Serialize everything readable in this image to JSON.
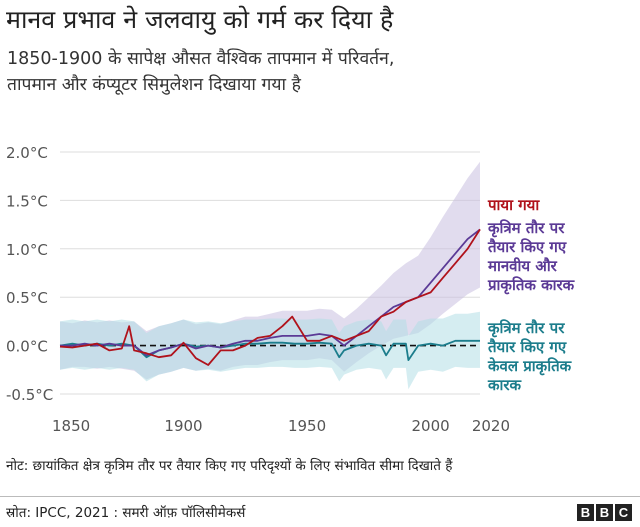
{
  "chart_data": {
    "type": "line",
    "title": "मानव प्रभाव ने जलवायु को गर्म कर दिया है",
    "subtitle": [
      "1850-1900 के सापेक्ष औसत वैश्विक तापमान में परिवर्तन,",
      "तापमान और कंप्यूटर सिमुलेशन दिखाया गया है"
    ],
    "xlabel": "",
    "ylabel": "",
    "xlim": [
      1850,
      2020
    ],
    "ylim": [
      -0.5,
      2.0
    ],
    "x_ticks": [
      1850,
      1900,
      1950,
      2000,
      2020
    ],
    "y_ticks": [
      {
        "value": -0.5,
        "label": "-0.5°C"
      },
      {
        "value": 0.0,
        "label": "0.0°C"
      },
      {
        "value": 0.5,
        "label": "0.5°C"
      },
      {
        "value": 1.0,
        "label": "1.0°C"
      },
      {
        "value": 1.5,
        "label": "1.5°C"
      },
      {
        "value": 2.0,
        "label": "2.0°C"
      }
    ],
    "grid": "horizontal",
    "zero_line": "dashed",
    "series": [
      {
        "name": "पाया गया",
        "color": "#b0121b",
        "x": [
          1850,
          1855,
          1860,
          1865,
          1870,
          1875,
          1878,
          1880,
          1885,
          1890,
          1895,
          1900,
          1905,
          1910,
          1915,
          1920,
          1925,
          1930,
          1935,
          1940,
          1944,
          1950,
          1955,
          1960,
          1965,
          1970,
          1975,
          1980,
          1985,
          1990,
          1995,
          2000,
          2005,
          2010,
          2015,
          2020
        ],
        "values": [
          -0.01,
          -0.02,
          0.0,
          0.02,
          -0.05,
          -0.03,
          0.2,
          -0.05,
          -0.08,
          -0.12,
          -0.1,
          0.03,
          -0.13,
          -0.2,
          -0.05,
          -0.05,
          0.0,
          0.08,
          0.1,
          0.2,
          0.3,
          0.05,
          0.05,
          0.1,
          0.05,
          0.1,
          0.15,
          0.3,
          0.35,
          0.45,
          0.5,
          0.55,
          0.7,
          0.85,
          1.0,
          1.2
        ]
      },
      {
        "name": "कृत्रिम तौर पर तैयार किए गए मानवीय और प्राकृतिक कारक",
        "color": "#5b3a96",
        "band_color": "#c9bfe0",
        "x": [
          1850,
          1855,
          1860,
          1865,
          1870,
          1875,
          1880,
          1885,
          1890,
          1895,
          1900,
          1905,
          1910,
          1915,
          1920,
          1925,
          1930,
          1935,
          1940,
          1945,
          1950,
          1955,
          1960,
          1965,
          1970,
          1975,
          1980,
          1985,
          1990,
          1995,
          2000,
          2005,
          2010,
          2015,
          2020
        ],
        "values": [
          0.0,
          0.0,
          0.02,
          0.0,
          0.02,
          0.0,
          0.0,
          -0.1,
          -0.05,
          -0.02,
          0.02,
          -0.03,
          0.0,
          -0.02,
          0.02,
          0.05,
          0.05,
          0.08,
          0.1,
          0.1,
          0.1,
          0.12,
          0.1,
          0.0,
          0.1,
          0.2,
          0.3,
          0.4,
          0.45,
          0.5,
          0.65,
          0.8,
          0.95,
          1.1,
          1.2
        ],
        "lower": [
          -0.25,
          -0.22,
          -0.22,
          -0.24,
          -0.22,
          -0.24,
          -0.26,
          -0.35,
          -0.3,
          -0.27,
          -0.23,
          -0.26,
          -0.24,
          -0.26,
          -0.22,
          -0.2,
          -0.2,
          -0.17,
          -0.15,
          -0.15,
          -0.15,
          -0.13,
          -0.15,
          -0.27,
          -0.17,
          -0.08,
          0.0,
          0.07,
          0.1,
          0.13,
          0.22,
          0.33,
          0.43,
          0.53,
          0.6
        ],
        "upper": [
          0.25,
          0.23,
          0.26,
          0.24,
          0.26,
          0.24,
          0.25,
          0.15,
          0.2,
          0.23,
          0.27,
          0.22,
          0.24,
          0.22,
          0.26,
          0.3,
          0.3,
          0.33,
          0.36,
          0.36,
          0.36,
          0.38,
          0.37,
          0.28,
          0.38,
          0.5,
          0.62,
          0.75,
          0.85,
          0.93,
          1.12,
          1.33,
          1.53,
          1.73,
          1.9
        ]
      },
      {
        "name": "कृत्रिम तौर पर तैयार किए गए केवल प्राकृतिक कारक",
        "color": "#1c7d8c",
        "band_color": "#b3dfe6",
        "x": [
          1850,
          1855,
          1860,
          1865,
          1870,
          1875,
          1880,
          1885,
          1890,
          1895,
          1900,
          1905,
          1910,
          1915,
          1920,
          1925,
          1930,
          1935,
          1940,
          1945,
          1950,
          1955,
          1960,
          1963,
          1965,
          1970,
          1975,
          1980,
          1982,
          1985,
          1990,
          1991,
          1995,
          2000,
          2005,
          2010,
          2015,
          2020
        ],
        "values": [
          0.0,
          0.02,
          0.0,
          0.02,
          0.0,
          0.02,
          0.0,
          -0.12,
          -0.05,
          -0.02,
          0.02,
          -0.01,
          0.0,
          -0.02,
          0.0,
          0.02,
          0.02,
          0.03,
          0.03,
          0.02,
          0.02,
          0.03,
          0.02,
          -0.12,
          -0.05,
          0.0,
          0.02,
          0.0,
          -0.1,
          0.02,
          0.02,
          -0.15,
          0.0,
          0.02,
          0.0,
          0.05,
          0.05,
          0.05
        ],
        "lower": [
          -0.25,
          -0.23,
          -0.25,
          -0.23,
          -0.25,
          -0.23,
          -0.25,
          -0.37,
          -0.3,
          -0.27,
          -0.23,
          -0.26,
          -0.25,
          -0.27,
          -0.25,
          -0.23,
          -0.23,
          -0.22,
          -0.22,
          -0.23,
          -0.23,
          -0.22,
          -0.23,
          -0.37,
          -0.3,
          -0.25,
          -0.23,
          -0.25,
          -0.35,
          -0.23,
          -0.23,
          -0.45,
          -0.27,
          -0.25,
          -0.27,
          -0.22,
          -0.23,
          -0.23
        ],
        "upper": [
          0.25,
          0.27,
          0.25,
          0.27,
          0.25,
          0.27,
          0.25,
          0.13,
          0.2,
          0.23,
          0.27,
          0.24,
          0.25,
          0.23,
          0.25,
          0.27,
          0.27,
          0.28,
          0.28,
          0.27,
          0.27,
          0.28,
          0.27,
          0.13,
          0.2,
          0.25,
          0.27,
          0.25,
          0.15,
          0.27,
          0.27,
          0.1,
          0.25,
          0.28,
          0.28,
          0.33,
          0.33,
          0.35
        ]
      }
    ],
    "legend": [
      {
        "lines": [
          "पाया गया"
        ],
        "color": "#b0121b"
      },
      {
        "lines": [
          "कृत्रिम तौर पर",
          "तैयार किए गए",
          "मानवीय और",
          "प्राकृतिक कारक"
        ],
        "color": "#5b3a96"
      },
      {
        "lines": [
          "कृत्रिम तौर पर",
          "तैयार किए गए",
          "केवल प्राकृतिक",
          "कारक"
        ],
        "color": "#1c7d8c"
      }
    ],
    "legend_placement": "right"
  },
  "note": "नोट: छायांकित क्षेत्र कृत्रिम तौर पर तैयार किए गए परिदृश्यों के लिए संभावित सीमा दिखाते हैं",
  "source": "स्रोत: IPCC, 2021 : समरी ऑफ़ पॉलिसीमेकर्स",
  "logo": {
    "text": [
      "B",
      "B",
      "C"
    ]
  }
}
